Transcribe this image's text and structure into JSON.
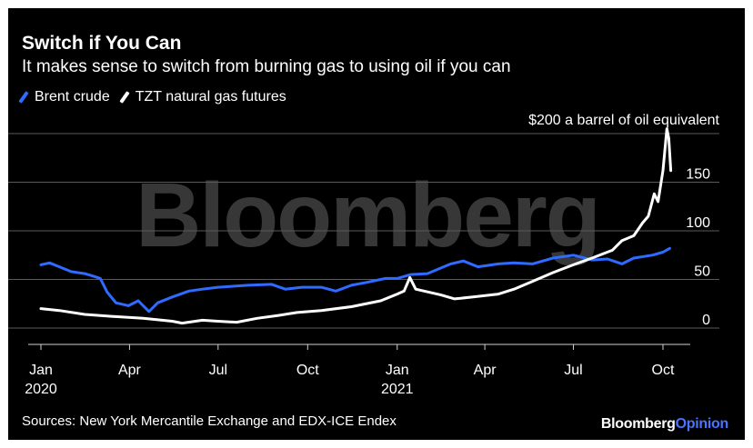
{
  "title": "Switch if You Can",
  "subtitle": "It makes sense to switch from burning gas to using oil if you can",
  "source": "Sources: New York Mercantile Exchange and EDX-ICE Endex",
  "brand": {
    "main": "Bloomberg",
    "accent": "Opinion"
  },
  "watermark": "Bloomberg",
  "colors": {
    "background": "#000000",
    "brent": "#2f6bff",
    "tzt": "#ffffff",
    "grid": "#555555",
    "text": "#ffffff",
    "accent": "#4a73ff"
  },
  "chart_data": {
    "type": "line",
    "annotation": "$200 a barrel of oil equivalent",
    "ylim": [
      0,
      200
    ],
    "grid": true,
    "legend_position": "top-left",
    "y_ticks": [
      "0",
      "50",
      "100",
      "150"
    ],
    "y_tick_values": [
      0,
      50,
      100,
      150
    ],
    "x_ticks": [
      {
        "date": "2020-01-01",
        "label": "Jan",
        "sublabel": "2020"
      },
      {
        "date": "2020-04-01",
        "label": "Apr",
        "sublabel": ""
      },
      {
        "date": "2020-07-01",
        "label": "Jul",
        "sublabel": ""
      },
      {
        "date": "2020-10-01",
        "label": "Oct",
        "sublabel": ""
      },
      {
        "date": "2021-01-01",
        "label": "Jan",
        "sublabel": "2021"
      },
      {
        "date": "2021-04-01",
        "label": "Apr",
        "sublabel": ""
      },
      {
        "date": "2021-07-01",
        "label": "Jul",
        "sublabel": ""
      },
      {
        "date": "2021-10-01",
        "label": "Oct",
        "sublabel": ""
      }
    ],
    "series": [
      {
        "name": "Brent crude",
        "color": "#2f6bff",
        "points": [
          [
            "2020-01-01",
            65
          ],
          [
            "2020-01-10",
            67
          ],
          [
            "2020-01-20",
            63
          ],
          [
            "2020-02-01",
            58
          ],
          [
            "2020-02-15",
            56
          ],
          [
            "2020-02-25",
            53
          ],
          [
            "2020-03-02",
            51
          ],
          [
            "2020-03-09",
            37
          ],
          [
            "2020-03-18",
            26
          ],
          [
            "2020-03-31",
            23
          ],
          [
            "2020-04-10",
            28
          ],
          [
            "2020-04-21",
            17
          ],
          [
            "2020-04-30",
            26
          ],
          [
            "2020-05-15",
            32
          ],
          [
            "2020-06-01",
            38
          ],
          [
            "2020-06-15",
            40
          ],
          [
            "2020-07-01",
            42
          ],
          [
            "2020-08-01",
            44
          ],
          [
            "2020-08-25",
            45
          ],
          [
            "2020-09-08",
            40
          ],
          [
            "2020-09-25",
            42
          ],
          [
            "2020-10-15",
            42
          ],
          [
            "2020-10-30",
            38
          ],
          [
            "2020-11-15",
            44
          ],
          [
            "2020-12-01",
            47
          ],
          [
            "2020-12-20",
            51
          ],
          [
            "2021-01-01",
            51
          ],
          [
            "2021-01-15",
            55
          ],
          [
            "2021-02-01",
            56
          ],
          [
            "2021-02-25",
            66
          ],
          [
            "2021-03-10",
            69
          ],
          [
            "2021-03-25",
            63
          ],
          [
            "2021-04-15",
            66
          ],
          [
            "2021-05-01",
            67
          ],
          [
            "2021-05-20",
            66
          ],
          [
            "2021-06-10",
            72
          ],
          [
            "2021-07-01",
            75
          ],
          [
            "2021-07-20",
            70
          ],
          [
            "2021-08-05",
            71
          ],
          [
            "2021-08-20",
            66
          ],
          [
            "2021-09-01",
            72
          ],
          [
            "2021-09-20",
            75
          ],
          [
            "2021-10-01",
            78
          ],
          [
            "2021-10-08",
            82
          ]
        ]
      },
      {
        "name": "TZT natural gas futures",
        "color": "#ffffff",
        "points": [
          [
            "2020-01-01",
            20
          ],
          [
            "2020-01-20",
            18
          ],
          [
            "2020-02-15",
            14
          ],
          [
            "2020-03-15",
            12
          ],
          [
            "2020-04-15",
            10
          ],
          [
            "2020-05-15",
            7
          ],
          [
            "2020-05-25",
            5
          ],
          [
            "2020-06-15",
            8
          ],
          [
            "2020-07-01",
            7
          ],
          [
            "2020-07-20",
            6
          ],
          [
            "2020-08-10",
            10
          ],
          [
            "2020-09-01",
            13
          ],
          [
            "2020-09-20",
            16
          ],
          [
            "2020-10-15",
            18
          ],
          [
            "2020-11-15",
            22
          ],
          [
            "2020-12-15",
            28
          ],
          [
            "2021-01-01",
            35
          ],
          [
            "2021-01-08",
            38
          ],
          [
            "2021-01-14",
            52
          ],
          [
            "2021-01-20",
            40
          ],
          [
            "2021-02-15",
            34
          ],
          [
            "2021-03-01",
            30
          ],
          [
            "2021-03-20",
            32
          ],
          [
            "2021-04-15",
            35
          ],
          [
            "2021-05-01",
            40
          ],
          [
            "2021-05-20",
            48
          ],
          [
            "2021-06-10",
            57
          ],
          [
            "2021-07-01",
            65
          ],
          [
            "2021-07-20",
            72
          ],
          [
            "2021-08-10",
            80
          ],
          [
            "2021-08-20",
            90
          ],
          [
            "2021-09-01",
            95
          ],
          [
            "2021-09-10",
            108
          ],
          [
            "2021-09-16",
            115
          ],
          [
            "2021-09-22",
            138
          ],
          [
            "2021-09-26",
            130
          ],
          [
            "2021-10-01",
            162
          ],
          [
            "2021-10-05",
            205
          ],
          [
            "2021-10-07",
            195
          ],
          [
            "2021-10-09",
            162
          ]
        ]
      }
    ]
  }
}
